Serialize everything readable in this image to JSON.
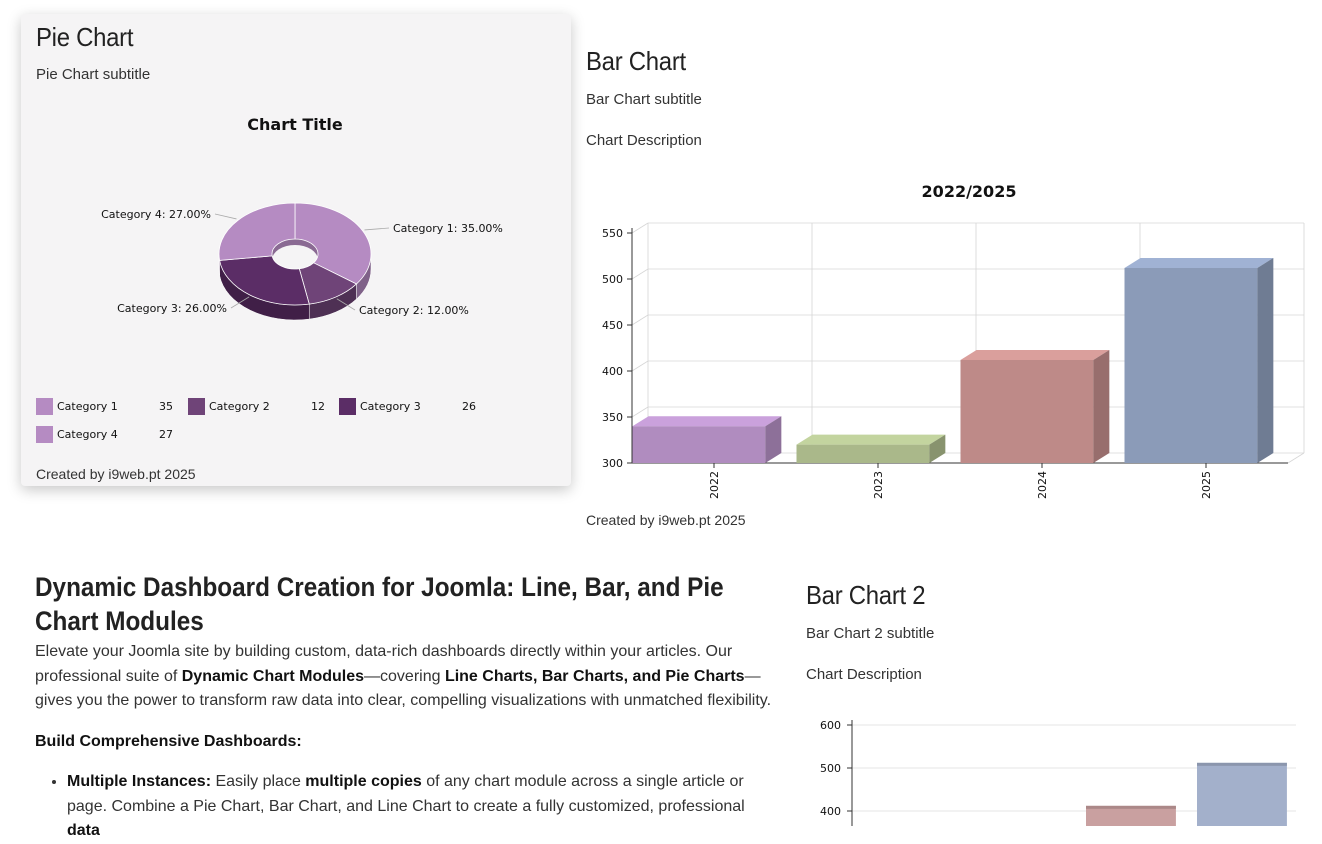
{
  "pie_module": {
    "title": "Pie Chart",
    "subtitle": "Pie Chart subtitle",
    "credit": "Created by i9web.pt 2025"
  },
  "bar_module": {
    "title": "Bar Chart",
    "subtitle": "Bar Chart subtitle",
    "description": "Chart Description",
    "credit": "Created by i9web.pt 2025"
  },
  "bar2_module": {
    "title": "Bar Chart 2",
    "subtitle": "Bar Chart 2 subtitle",
    "description": "Chart Description"
  },
  "article": {
    "heading": "Dynamic Dashboard Creation for Joomla: Line, Bar, and Pie Chart Modules",
    "intro_1": "Elevate your Joomla site by building custom, data-rich dashboards directly within your articles. Our professional suite of ",
    "intro_bold_1": "Dynamic Chart Modules",
    "intro_2": "—covering ",
    "intro_bold_2": "Line Charts, Bar Charts, and Pie Charts",
    "intro_3": "—gives you the power to transform raw data into clear, compelling visualizations with unmatched flexibility.",
    "section_heading": "Build Comprehensive Dashboards:",
    "bullet_1_bold": "Multiple Instances:",
    "bullet_1_text_1": " Easily place ",
    "bullet_1_bold_2": "multiple copies",
    "bullet_1_text_2": " of any chart module across a single article or page. Combine a Pie Chart, Bar Chart, and Line Chart to create a fully customized, professional ",
    "bullet_1_bold_3": "data"
  },
  "chart_data": [
    {
      "type": "pie",
      "title": "Chart Title",
      "categories": [
        "Category 1",
        "Category 2",
        "Category 3",
        "Category 4"
      ],
      "values": [
        35,
        12,
        26,
        27
      ],
      "slice_labels": [
        "Category 1: 35.00%",
        "Category 2: 12.00%",
        "Category 3: 26.00%",
        "Category 4: 27.00%"
      ],
      "colors": [
        "#b58bc2",
        "#6f4478",
        "#5b2d66",
        "#b58bc2"
      ],
      "donut": true,
      "legend_position": "bottom-left"
    },
    {
      "type": "bar",
      "title": "2022/2025",
      "categories": [
        "2022",
        "2023",
        "2024",
        "2025"
      ],
      "values": [
        340,
        320,
        412,
        512
      ],
      "colors": [
        "#b08cbf",
        "#aab88a",
        "#be8a88",
        "#8b9bb8"
      ],
      "ylim": [
        300,
        550
      ],
      "yticks": [
        300,
        350,
        400,
        450,
        500,
        550
      ],
      "grid": true
    },
    {
      "type": "bar",
      "categories": [
        "",
        "",
        "",
        ""
      ],
      "values": [
        null,
        null,
        412,
        512
      ],
      "colors": [
        "#b08cbf",
        "#aab88a",
        "#c9a0a0",
        "#a3b0cb"
      ],
      "yticks": [
        400,
        500,
        600
      ],
      "grid": true
    }
  ]
}
